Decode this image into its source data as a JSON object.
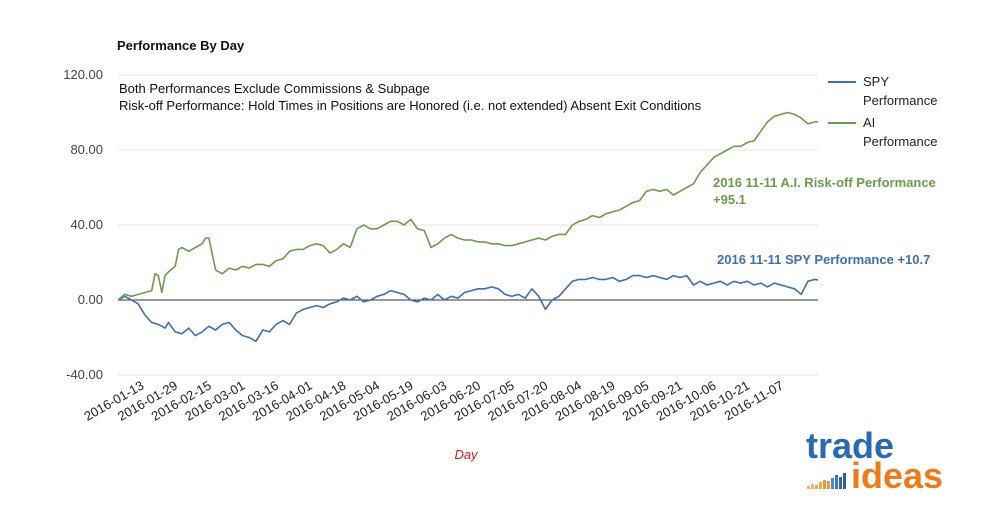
{
  "chart_data": {
    "type": "line",
    "title": "Performance By Day",
    "subtitle_lines": [
      "Both Performances Exclude Commissions & Subpage",
      "Risk-off Performance:  Hold Times in Positions are Honored (i.e. not extended) Absent Exit Conditions"
    ],
    "xlabel": "Day",
    "ylabel": "",
    "ylim": [
      -40,
      120
    ],
    "yticks": [
      -40,
      0,
      40,
      80,
      120
    ],
    "ytick_labels": [
      "-40.00",
      "0.00",
      "40.00",
      "80.00",
      "120.00"
    ],
    "x_tick_labels": [
      "2016-01-13",
      "2016-01-29",
      "2016-02-15",
      "2016-03-01",
      "2016-03-16",
      "2016-04-01",
      "2016-04-18",
      "2016-05-04",
      "2016-05-19",
      "2016-06-03",
      "2016-06-20",
      "2016-07-05",
      "2016-07-20",
      "2016-08-04",
      "2016-08-19",
      "2016-09-05",
      "2016-09-21",
      "2016-10-06",
      "2016-10-21",
      "2016-11-07"
    ],
    "x_tick_index": [
      8,
      18,
      28,
      38,
      48,
      58,
      68,
      78,
      88,
      98,
      108,
      118,
      128,
      138,
      148,
      158,
      168,
      178,
      188,
      198
    ],
    "x_count": 209,
    "legend_position": "right",
    "series": [
      {
        "name": "SPY Performance",
        "legend_lines": [
          "SPY",
          "Performance"
        ],
        "color": "#3e6eb4",
        "points": [
          [
            0,
            0
          ],
          [
            2,
            2
          ],
          [
            4,
            0
          ],
          [
            6,
            -2
          ],
          [
            8,
            -8
          ],
          [
            10,
            -12
          ],
          [
            12,
            -13
          ],
          [
            14,
            -15
          ],
          [
            15,
            -12
          ],
          [
            17,
            -17
          ],
          [
            19,
            -18
          ],
          [
            21,
            -15
          ],
          [
            23,
            -19
          ],
          [
            25,
            -17
          ],
          [
            27,
            -14
          ],
          [
            29,
            -16
          ],
          [
            31,
            -13
          ],
          [
            33,
            -12
          ],
          [
            35,
            -16
          ],
          [
            37,
            -19
          ],
          [
            39,
            -20
          ],
          [
            41,
            -22
          ],
          [
            43,
            -16
          ],
          [
            45,
            -17
          ],
          [
            47,
            -13
          ],
          [
            49,
            -11
          ],
          [
            51,
            -13
          ],
          [
            53,
            -7
          ],
          [
            55,
            -5
          ],
          [
            57,
            -4
          ],
          [
            59,
            -3
          ],
          [
            61,
            -4
          ],
          [
            63,
            -2
          ],
          [
            65,
            -1
          ],
          [
            67,
            1
          ],
          [
            69,
            0
          ],
          [
            71,
            2
          ],
          [
            73,
            -1
          ],
          [
            75,
            0
          ],
          [
            77,
            2
          ],
          [
            79,
            3
          ],
          [
            81,
            5
          ],
          [
            83,
            4
          ],
          [
            85,
            3
          ],
          [
            87,
            0
          ],
          [
            89,
            -1
          ],
          [
            91,
            1
          ],
          [
            93,
            0
          ],
          [
            95,
            3
          ],
          [
            97,
            0
          ],
          [
            99,
            2
          ],
          [
            101,
            1
          ],
          [
            103,
            4
          ],
          [
            105,
            5
          ],
          [
            107,
            6
          ],
          [
            109,
            6
          ],
          [
            111,
            7
          ],
          [
            113,
            6
          ],
          [
            115,
            3
          ],
          [
            117,
            2
          ],
          [
            119,
            3
          ],
          [
            121,
            1
          ],
          [
            123,
            6
          ],
          [
            125,
            2
          ],
          [
            127,
            -5
          ],
          [
            129,
            0
          ],
          [
            131,
            2
          ],
          [
            133,
            6
          ],
          [
            135,
            10
          ],
          [
            137,
            11
          ],
          [
            139,
            11
          ],
          [
            141,
            12
          ],
          [
            143,
            11
          ],
          [
            145,
            11
          ],
          [
            147,
            12
          ],
          [
            149,
            10
          ],
          [
            151,
            11
          ],
          [
            153,
            13
          ],
          [
            155,
            13
          ],
          [
            157,
            12
          ],
          [
            159,
            13
          ],
          [
            161,
            12
          ],
          [
            163,
            11
          ],
          [
            165,
            13
          ],
          [
            167,
            12
          ],
          [
            169,
            13
          ],
          [
            171,
            8
          ],
          [
            173,
            10
          ],
          [
            175,
            8
          ],
          [
            177,
            9
          ],
          [
            179,
            10
          ],
          [
            181,
            8
          ],
          [
            183,
            10
          ],
          [
            185,
            9
          ],
          [
            187,
            10
          ],
          [
            189,
            8
          ],
          [
            191,
            9
          ],
          [
            193,
            7
          ],
          [
            195,
            9
          ],
          [
            197,
            8
          ],
          [
            199,
            7
          ],
          [
            201,
            6
          ],
          [
            203,
            3
          ],
          [
            205,
            10
          ],
          [
            207,
            11
          ],
          [
            208,
            10.7
          ]
        ]
      },
      {
        "name": "AI Performance",
        "legend_lines": [
          "AI",
          "Performance"
        ],
        "color": "#6e9b4b",
        "points": [
          [
            0,
            0
          ],
          [
            2,
            3
          ],
          [
            4,
            2
          ],
          [
            6,
            3
          ],
          [
            8,
            4
          ],
          [
            10,
            5
          ],
          [
            11,
            14
          ],
          [
            12,
            13
          ],
          [
            13,
            4
          ],
          [
            14,
            13
          ],
          [
            15,
            15
          ],
          [
            17,
            18
          ],
          [
            18,
            27
          ],
          [
            19,
            28
          ],
          [
            21,
            26
          ],
          [
            23,
            28
          ],
          [
            25,
            30
          ],
          [
            26,
            33
          ],
          [
            27,
            33
          ],
          [
            29,
            16
          ],
          [
            31,
            14
          ],
          [
            33,
            17
          ],
          [
            35,
            16
          ],
          [
            37,
            18
          ],
          [
            39,
            17
          ],
          [
            41,
            19
          ],
          [
            43,
            19
          ],
          [
            45,
            18
          ],
          [
            47,
            21
          ],
          [
            49,
            22
          ],
          [
            51,
            26
          ],
          [
            53,
            27
          ],
          [
            55,
            27
          ],
          [
            57,
            29
          ],
          [
            59,
            30
          ],
          [
            61,
            29
          ],
          [
            63,
            25
          ],
          [
            65,
            27
          ],
          [
            67,
            30
          ],
          [
            69,
            28
          ],
          [
            71,
            38
          ],
          [
            73,
            40
          ],
          [
            75,
            38
          ],
          [
            77,
            38
          ],
          [
            79,
            40
          ],
          [
            81,
            42
          ],
          [
            83,
            42
          ],
          [
            85,
            40
          ],
          [
            87,
            43
          ],
          [
            89,
            38
          ],
          [
            91,
            37
          ],
          [
            93,
            28
          ],
          [
            95,
            30
          ],
          [
            97,
            33
          ],
          [
            99,
            35
          ],
          [
            101,
            33
          ],
          [
            103,
            32
          ],
          [
            105,
            32
          ],
          [
            107,
            31
          ],
          [
            109,
            31
          ],
          [
            111,
            30
          ],
          [
            113,
            30
          ],
          [
            115,
            29
          ],
          [
            117,
            29
          ],
          [
            119,
            30
          ],
          [
            121,
            31
          ],
          [
            123,
            32
          ],
          [
            125,
            33
          ],
          [
            127,
            32
          ],
          [
            129,
            34
          ],
          [
            131,
            35
          ],
          [
            133,
            35
          ],
          [
            135,
            40
          ],
          [
            137,
            42
          ],
          [
            139,
            43
          ],
          [
            141,
            45
          ],
          [
            143,
            44
          ],
          [
            145,
            46
          ],
          [
            147,
            47
          ],
          [
            149,
            48
          ],
          [
            151,
            50
          ],
          [
            153,
            52
          ],
          [
            155,
            53
          ],
          [
            157,
            58
          ],
          [
            159,
            59
          ],
          [
            161,
            58
          ],
          [
            163,
            59
          ],
          [
            165,
            56
          ],
          [
            167,
            58
          ],
          [
            169,
            60
          ],
          [
            171,
            62
          ],
          [
            173,
            68
          ],
          [
            175,
            72
          ],
          [
            177,
            76
          ],
          [
            179,
            78
          ],
          [
            181,
            80
          ],
          [
            183,
            82
          ],
          [
            185,
            82
          ],
          [
            187,
            84
          ],
          [
            189,
            85
          ],
          [
            191,
            90
          ],
          [
            193,
            95
          ],
          [
            195,
            98
          ],
          [
            197,
            99
          ],
          [
            199,
            100
          ],
          [
            201,
            99
          ],
          [
            203,
            97
          ],
          [
            205,
            94
          ],
          [
            207,
            95
          ],
          [
            208,
            95.1
          ]
        ]
      }
    ],
    "annotations": [
      {
        "series": "AI Performance",
        "lines": [
          "2016 11-11 A.I. Risk-off Performance",
          "+95.1"
        ]
      },
      {
        "series": "SPY Performance",
        "lines": [
          "2016 11-11 SPY Performance +10.7"
        ]
      }
    ]
  },
  "logo": {
    "top": "trade",
    "bottom": "ideas",
    "top_color": "#2a6ab3",
    "bottom_color": "#ee7a1a"
  }
}
